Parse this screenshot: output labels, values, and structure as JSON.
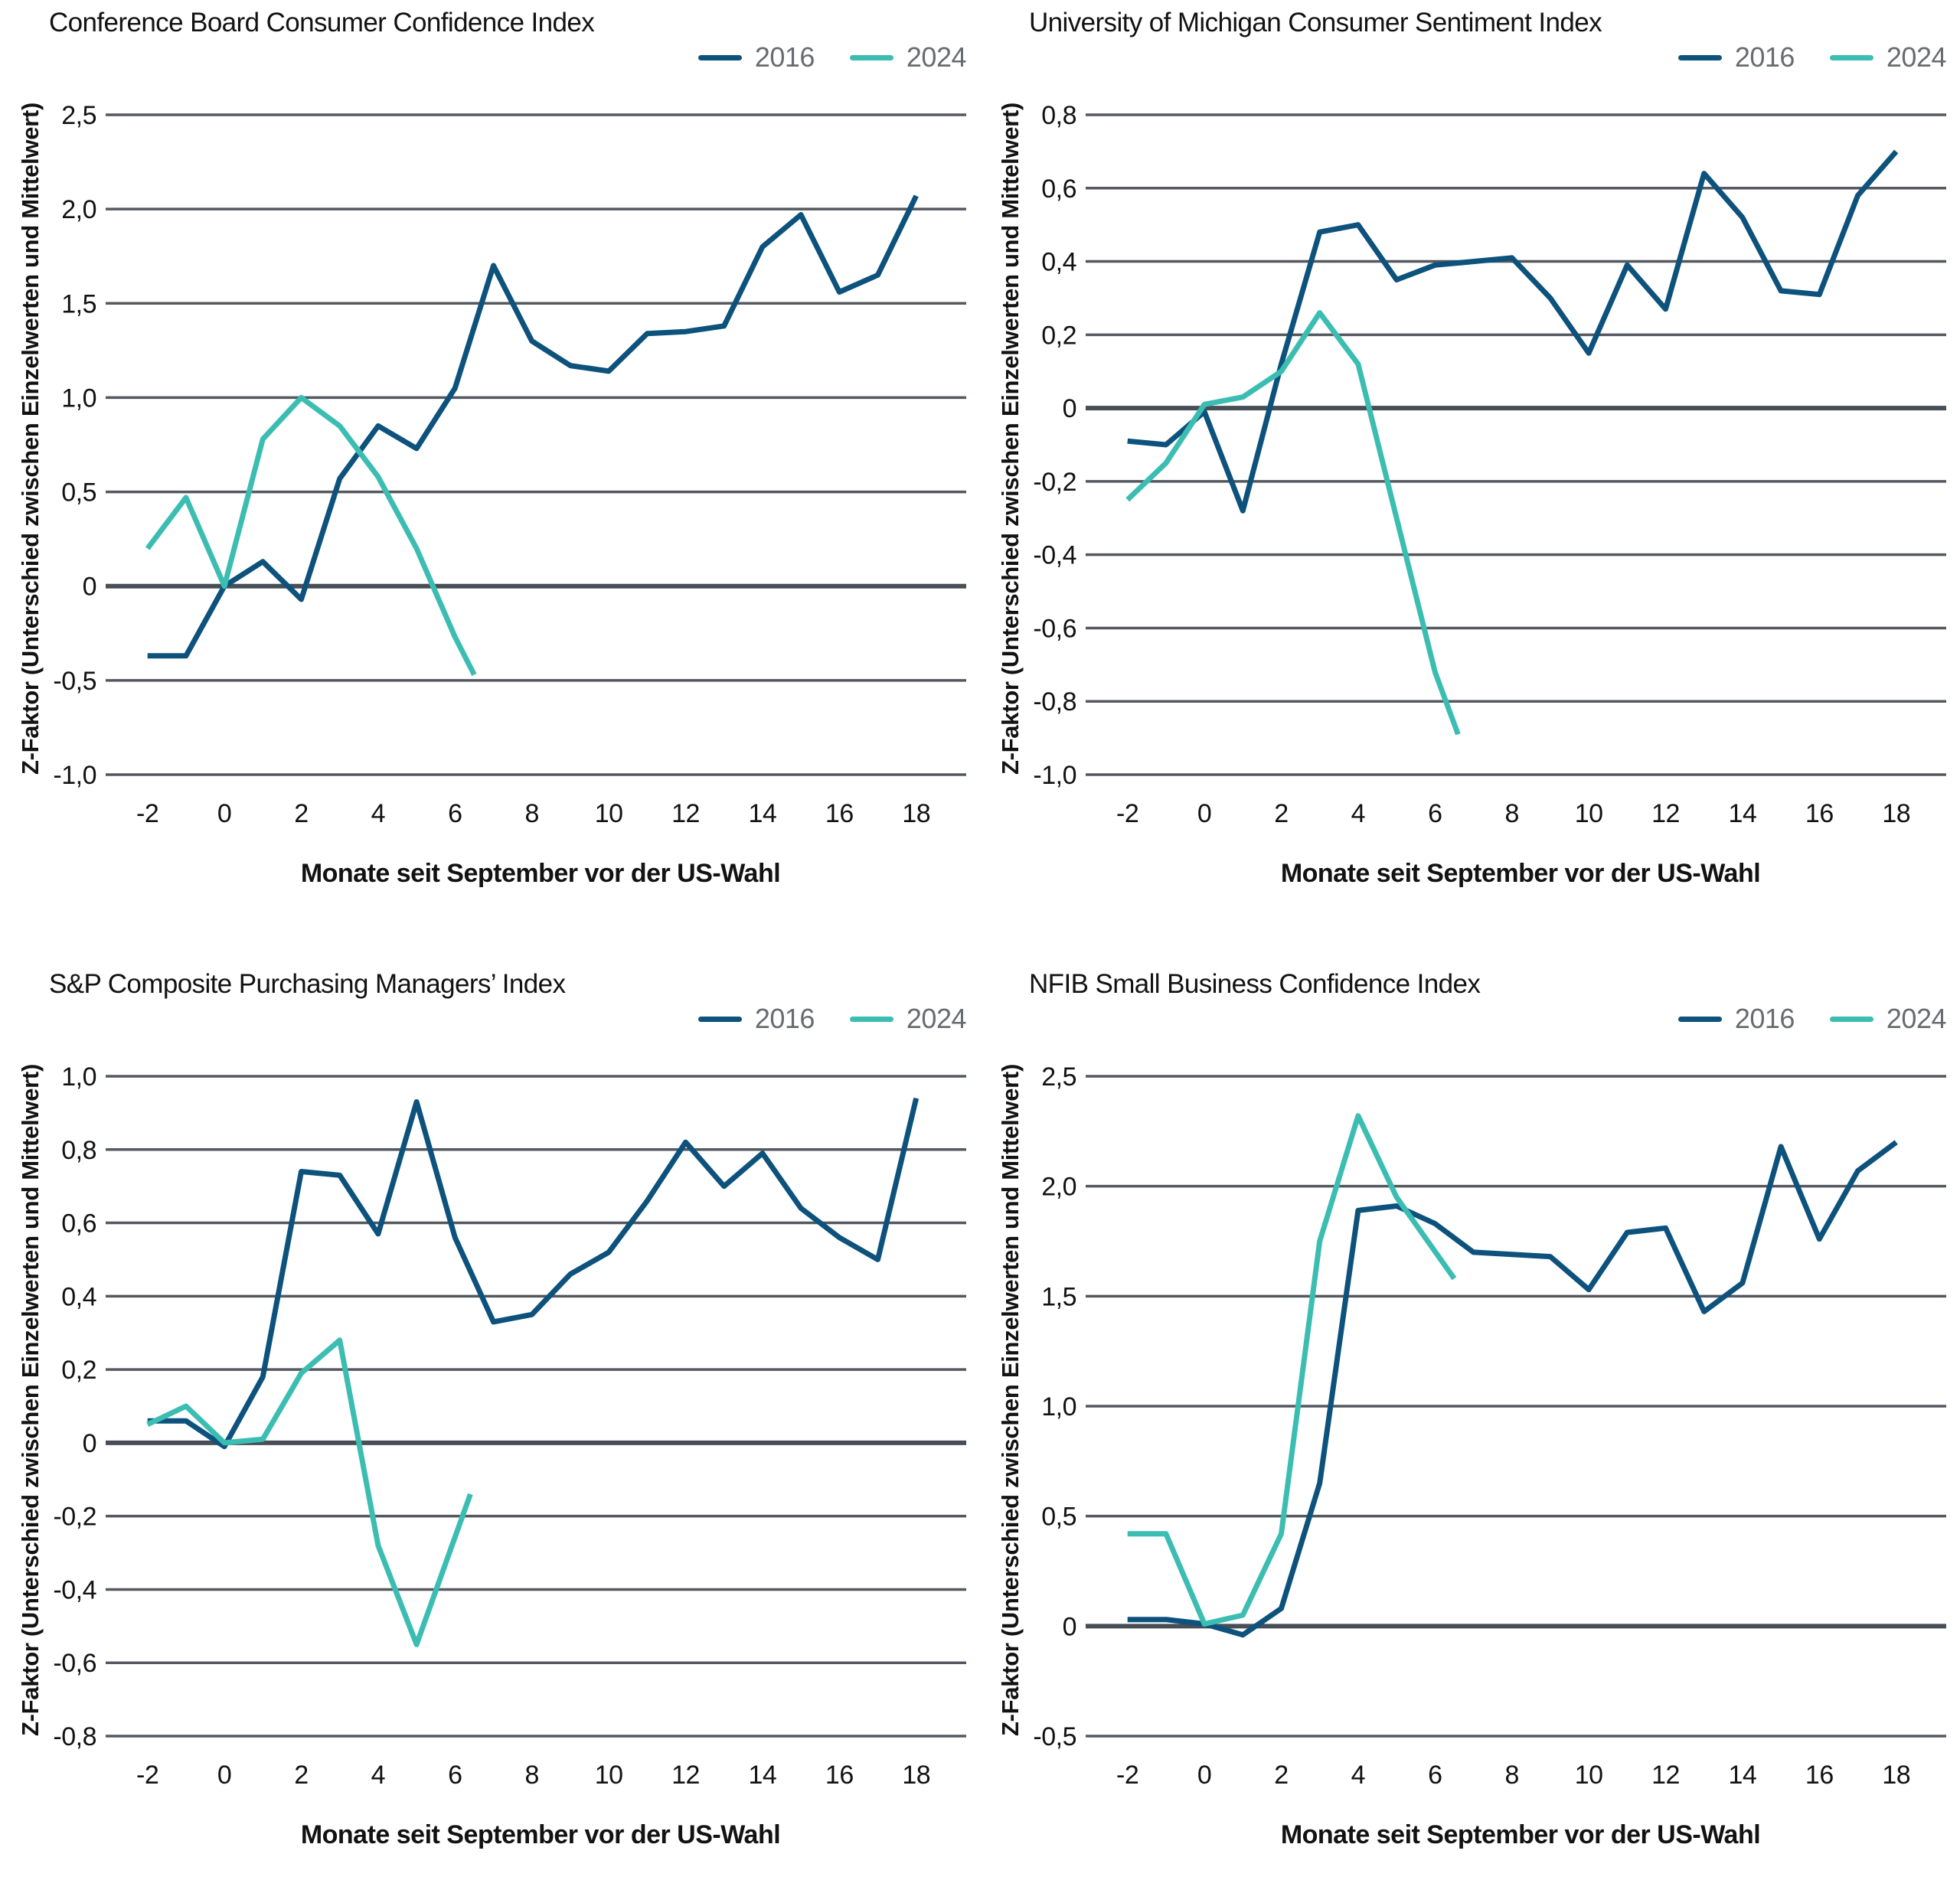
{
  "colors": {
    "series_2016": "#0D527C",
    "series_2024": "#3CBDB2",
    "gridline": "#54585F",
    "zero_line": "#474E56",
    "tick_text": "#121212",
    "legend_text": "#686C70",
    "background": "#FFFFFF"
  },
  "axis": {
    "ylabel": "Z-Faktor (Unterschied zwischen Einzelwerten und Mittelwert)",
    "xlabel": "Monate seit September vor der US-Wahl"
  },
  "legend": {
    "items": [
      "2016",
      "2024"
    ]
  },
  "chart_data": [
    {
      "type": "line",
      "title": "Conference Board Consumer Confidence Index",
      "ylabel": "Z-Faktor (Unterschied zwischen Einzelwerten und Mittelwert)",
      "xlabel": "Monate seit September vor der US-Wahl",
      "legend_position": "top-right",
      "grid": "horizontal",
      "xlim": [
        -2.85,
        19.3
      ],
      "ylim": [
        -1.0,
        2.5
      ],
      "xticks": [
        -2,
        0,
        2,
        4,
        6,
        8,
        10,
        12,
        14,
        16,
        18
      ],
      "xtick_labels": [
        "-2",
        "0",
        "2",
        "4",
        "6",
        "8",
        "10",
        "12",
        "14",
        "16",
        "18"
      ],
      "yticks": [
        2.5,
        2.0,
        1.5,
        1.0,
        0.5,
        0,
        -0.5,
        -1.0
      ],
      "ytick_labels": [
        "2,5",
        "2,0",
        "1,5",
        "1,0",
        "0,5",
        "0",
        "-0,5",
        "-1,0"
      ],
      "series": [
        {
          "name": "2016",
          "color": "#0D527C",
          "x": [
            -2,
            -1,
            0,
            1,
            2,
            3,
            4,
            5,
            6,
            7,
            8,
            9,
            10,
            11,
            12,
            13,
            14,
            15,
            16,
            17,
            18
          ],
          "values": [
            -0.37,
            -0.37,
            0.0,
            0.13,
            -0.07,
            0.57,
            0.85,
            0.73,
            1.05,
            1.7,
            1.3,
            1.17,
            1.14,
            1.34,
            1.35,
            1.38,
            1.8,
            1.97,
            1.56,
            1.65,
            2.07
          ]
        },
        {
          "name": "2024",
          "color": "#3CBDB2",
          "x": [
            -2,
            -1,
            0,
            1,
            2,
            3,
            4,
            5,
            6,
            6.5
          ],
          "values": [
            0.2,
            0.47,
            0.0,
            0.78,
            1.0,
            0.85,
            0.58,
            0.2,
            -0.27,
            -0.47
          ]
        }
      ]
    },
    {
      "type": "line",
      "title": "University of Michigan Consumer Sentiment Index",
      "ylabel": "Z-Faktor (Unterschied zwischen Einzelwerten und Mittelwert)",
      "xlabel": "Monate seit September vor der US-Wahl",
      "legend_position": "top-right",
      "grid": "horizontal",
      "xlim": [
        -2.85,
        19.3
      ],
      "ylim": [
        -1.0,
        0.8
      ],
      "xticks": [
        -2,
        0,
        2,
        4,
        6,
        8,
        10,
        12,
        14,
        16,
        18
      ],
      "xtick_labels": [
        "-2",
        "0",
        "2",
        "4",
        "6",
        "8",
        "10",
        "12",
        "14",
        "16",
        "18"
      ],
      "yticks": [
        0.8,
        0.6,
        0.4,
        0.2,
        0,
        -0.2,
        -0.4,
        -0.6,
        -0.8,
        -1.0
      ],
      "ytick_labels": [
        "0,8",
        "0,6",
        "0,4",
        "0,2",
        "0",
        "-0,2",
        "-0,4",
        "-0,6",
        "-0,8",
        "-1,0"
      ],
      "series": [
        {
          "name": "2016",
          "color": "#0D527C",
          "x": [
            -2,
            -1,
            0,
            1,
            2,
            3,
            4,
            5,
            6,
            7,
            8,
            9,
            10,
            11,
            12,
            13,
            14,
            15,
            16,
            17,
            18
          ],
          "values": [
            -0.09,
            -0.1,
            -0.01,
            -0.28,
            0.12,
            0.48,
            0.5,
            0.35,
            0.39,
            0.4,
            0.41,
            0.3,
            0.15,
            0.39,
            0.27,
            0.64,
            0.52,
            0.32,
            0.31,
            0.58,
            0.7
          ]
        },
        {
          "name": "2024",
          "color": "#3CBDB2",
          "x": [
            -2,
            -1,
            0,
            1,
            2,
            3,
            4,
            5,
            6,
            6.6
          ],
          "values": [
            -0.25,
            -0.15,
            0.01,
            0.03,
            0.1,
            0.26,
            0.12,
            -0.3,
            -0.72,
            -0.89
          ]
        }
      ]
    },
    {
      "type": "line",
      "title": "S&P Composite Purchasing Managers’ Index",
      "ylabel": "Z-Faktor (Unterschied zwischen Einzelwerten und Mittelwert)",
      "xlabel": "Monate seit September vor der US-Wahl",
      "legend_position": "top-right",
      "grid": "horizontal",
      "xlim": [
        -2.85,
        19.3
      ],
      "ylim": [
        -0.8,
        1.0
      ],
      "xticks": [
        -2,
        0,
        2,
        4,
        6,
        8,
        10,
        12,
        14,
        16,
        18
      ],
      "xtick_labels": [
        "-2",
        "0",
        "2",
        "4",
        "6",
        "8",
        "10",
        "12",
        "14",
        "16",
        "18"
      ],
      "yticks": [
        1.0,
        0.8,
        0.6,
        0.4,
        0.2,
        0,
        -0.2,
        -0.4,
        -0.6,
        -0.8
      ],
      "ytick_labels": [
        "1,0",
        "0,8",
        "0,6",
        "0,4",
        "0,2",
        "0",
        "-0,2",
        "-0,4",
        "-0,6",
        "-0,8"
      ],
      "series": [
        {
          "name": "2016",
          "color": "#0D527C",
          "x": [
            -2,
            -1,
            0,
            1,
            2,
            3,
            4,
            5,
            6,
            7,
            8,
            9,
            10,
            11,
            12,
            13,
            14,
            15,
            16,
            17,
            18
          ],
          "values": [
            0.06,
            0.06,
            -0.01,
            0.18,
            0.74,
            0.73,
            0.57,
            0.93,
            0.56,
            0.33,
            0.35,
            0.46,
            0.52,
            0.66,
            0.82,
            0.7,
            0.79,
            0.64,
            0.56,
            0.5,
            0.94
          ]
        },
        {
          "name": "2024",
          "color": "#3CBDB2",
          "x": [
            -2,
            -1,
            0,
            1,
            2,
            3,
            4,
            5,
            6.4
          ],
          "values": [
            0.05,
            0.1,
            0.0,
            0.01,
            0.19,
            0.28,
            -0.28,
            -0.55,
            -0.14
          ]
        }
      ]
    },
    {
      "type": "line",
      "title": "NFIB Small Business Confidence Index",
      "ylabel": "Z-Faktor (Unterschied zwischen Einzelwerten und Mittelwert)",
      "xlabel": "Monate seit September vor der US-Wahl",
      "legend_position": "top-right",
      "grid": "horizontal",
      "xlim": [
        -2.85,
        19.3
      ],
      "ylim": [
        -0.5,
        2.5
      ],
      "xticks": [
        -2,
        0,
        2,
        4,
        6,
        8,
        10,
        12,
        14,
        16,
        18
      ],
      "xtick_labels": [
        "-2",
        "0",
        "2",
        "4",
        "6",
        "8",
        "10",
        "12",
        "14",
        "16",
        "18"
      ],
      "yticks": [
        2.5,
        2.0,
        1.5,
        1.0,
        0.5,
        0,
        -0.5
      ],
      "ytick_labels": [
        "2,5",
        "2,0",
        "1,5",
        "1,0",
        "0,5",
        "0",
        "-0,5"
      ],
      "series": [
        {
          "name": "2016",
          "color": "#0D527C",
          "x": [
            -2,
            -1,
            0,
            1,
            2,
            3,
            4,
            5,
            6,
            7,
            8,
            9,
            10,
            11,
            12,
            13,
            14,
            15,
            16,
            17,
            18
          ],
          "values": [
            0.03,
            0.03,
            0.01,
            -0.04,
            0.08,
            0.65,
            1.89,
            1.91,
            1.83,
            1.7,
            1.69,
            1.68,
            1.53,
            1.79,
            1.81,
            1.43,
            1.56,
            2.18,
            1.76,
            2.07,
            2.2
          ]
        },
        {
          "name": "2024",
          "color": "#3CBDB2",
          "x": [
            -2,
            -1,
            0,
            1,
            2,
            3,
            4,
            5,
            6.5
          ],
          "values": [
            0.42,
            0.42,
            0.01,
            0.05,
            0.42,
            1.75,
            2.32,
            1.95,
            1.58
          ]
        }
      ]
    }
  ]
}
